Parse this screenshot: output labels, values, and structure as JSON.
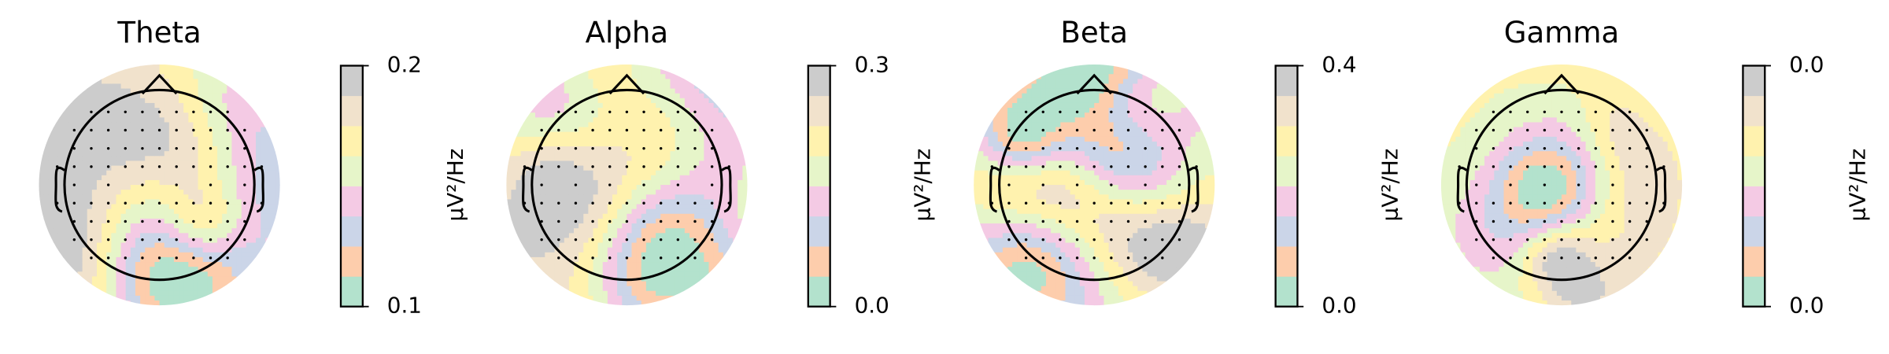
{
  "chart_data": [
    {
      "type": "topomap",
      "title": "Theta",
      "colorbar_label": "µV²/Hz",
      "ylim": [
        0.1,
        0.2
      ],
      "yticks": [
        0.1,
        0.2
      ],
      "colors": [
        "#b3e2cd",
        "#fdcdac",
        "#cbd5e8",
        "#f4cae4",
        "#e6f5c9",
        "#fff2ae",
        "#f1e2cc",
        "#cccccc"
      ]
    },
    {
      "type": "topomap",
      "title": "Alpha",
      "colorbar_label": "µV²/Hz",
      "ylim": [
        0,
        0.3
      ],
      "yticks": [
        {
          "value": 0,
          "label": "0.0"
        },
        0.3
      ],
      "colors": [
        "#b3e2cd",
        "#fdcdac",
        "#cbd5e8",
        "#f4cae4",
        "#e6f5c9",
        "#fff2ae",
        "#f1e2cc",
        "#cccccc"
      ]
    },
    {
      "type": "topomap",
      "title": "Beta",
      "colorbar_label": "µV²/Hz",
      "ylim": [
        0,
        0.4
      ],
      "yticks": [
        {
          "value": 0,
          "label": "0.0"
        },
        0.4
      ],
      "colors": [
        "#b3e2cd",
        "#fdcdac",
        "#cbd5e8",
        "#f4cae4",
        "#e6f5c9",
        "#fff2ae",
        "#f1e2cc",
        "#cccccc"
      ]
    },
    {
      "type": "topomap",
      "title": "Gamma",
      "colorbar_label": "µV²/Hz",
      "ylim": [
        0,
        0.04
      ],
      "yticks": [
        {
          "value": 0,
          "label": "0.0"
        },
        {
          "value": 0.04,
          "label": "0.0"
        }
      ],
      "colors": [
        "#b3e2cd",
        "#fdcdac",
        "#cbd5e8",
        "#f4cae4",
        "#e6f5c9",
        "#fff2ae",
        "#f1e2cc",
        "#cccccc"
      ]
    }
  ]
}
